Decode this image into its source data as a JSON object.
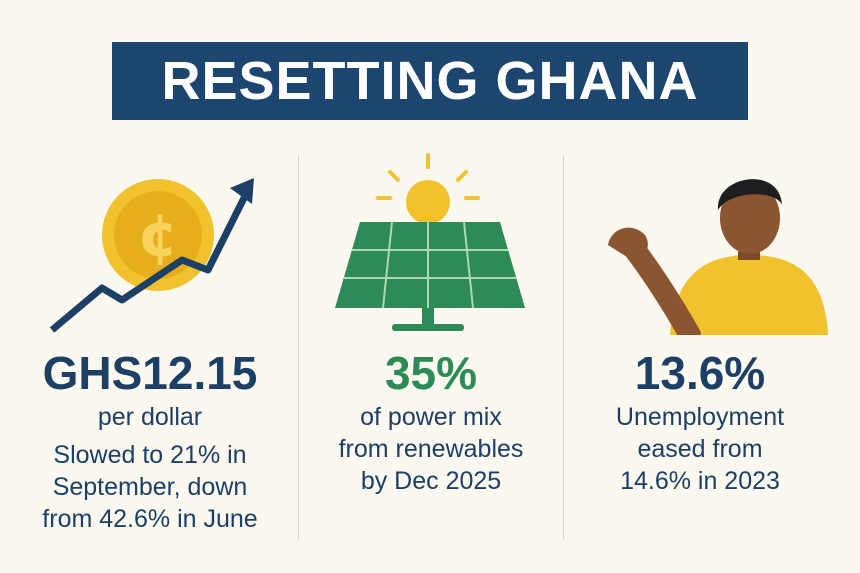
{
  "title": "RESETTING GHANA",
  "colors": {
    "navy": "#1c4570",
    "green": "#2e8b57",
    "yellow": "#f2c12e",
    "background": "#fbf8f0"
  },
  "columns": [
    {
      "icon": "cedi-coin-rising-arrow-icon",
      "value": "GHS12.15",
      "label": "per dollar",
      "detail": [
        "Slowed to 21% in",
        "September, down",
        "from 42.6% in June"
      ]
    },
    {
      "icon": "solar-panel-sun-icon",
      "value": "35%",
      "label": [
        "of power mix",
        "from renewables",
        "by Dec 2025"
      ]
    },
    {
      "icon": "person-gesturing-icon",
      "value": "13.6%",
      "label": [
        "Unemployment",
        "eased from",
        "14.6% in 2023"
      ]
    }
  ],
  "coin_symbol": "¢"
}
